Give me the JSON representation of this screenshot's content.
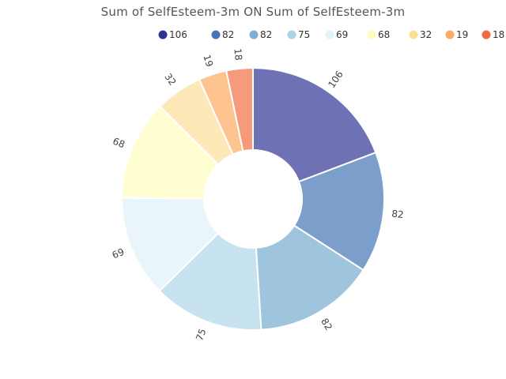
{
  "chart_data": {
    "type": "pie",
    "title": "Sum of SelfEsteem-3m ON Sum of SelfEsteem-3m",
    "donut": true,
    "values": [
      106,
      82,
      82,
      75,
      69,
      68,
      32,
      19,
      18
    ],
    "labels": [
      "106",
      "82",
      "82",
      "75",
      "69",
      "68",
      "32",
      "19",
      "18"
    ],
    "slice_colors": [
      "#6e72b4",
      "#7b9ecb",
      "#9fc5de",
      "#c7e3ef",
      "#e9f5fa",
      "#fffed3",
      "#fde9b7",
      "#fdc48f",
      "#f59a7a"
    ],
    "legend": {
      "placement": "top-right",
      "entries": [
        "106",
        "82",
        "82",
        "75",
        "69",
        "68",
        "32",
        "19",
        "18"
      ],
      "colors": [
        "#2d3491",
        "#4975b8",
        "#7eaed4",
        "#a9d5e7",
        "#e2f2f8",
        "#fefebd",
        "#fdde93",
        "#faaa65",
        "#ef6944"
      ]
    }
  }
}
